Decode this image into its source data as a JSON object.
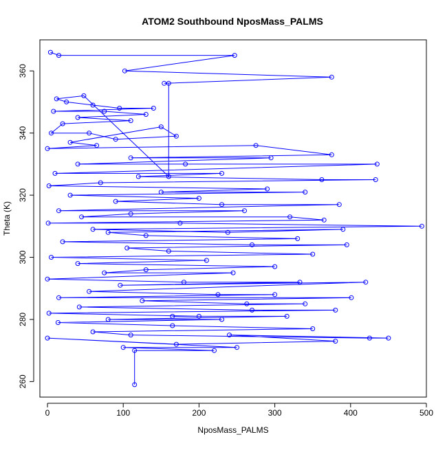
{
  "chart_data": {
    "type": "line",
    "title": "ATOM2 Southbound NposMass_PALMS",
    "xlabel": "NposMass_PALMS",
    "ylabel": "Theta (K)",
    "xlim": [
      -10,
      500
    ],
    "ylim": [
      255,
      370
    ],
    "x_ticks": [
      0,
      100,
      200,
      300,
      400,
      500
    ],
    "y_ticks": [
      260,
      280,
      300,
      320,
      340,
      360
    ],
    "grid": false,
    "legend": "none",
    "series_color": "#0000ff",
    "markers": "open-circle",
    "series": [
      {
        "points": [
          [
            4,
            366
          ],
          [
            15,
            365
          ],
          [
            247,
            365
          ],
          [
            102,
            360
          ],
          [
            375,
            358
          ],
          [
            154,
            356
          ],
          [
            160,
            356
          ],
          [
            160,
            326
          ],
          [
            48,
            352
          ],
          [
            12,
            351
          ],
          [
            25,
            350
          ],
          [
            60,
            349
          ],
          [
            95,
            348
          ],
          [
            140,
            348
          ],
          [
            8,
            347
          ],
          [
            75,
            347
          ],
          [
            130,
            346
          ],
          [
            40,
            345
          ],
          [
            110,
            344
          ],
          [
            20,
            343
          ],
          [
            5,
            340
          ],
          [
            55,
            340
          ],
          [
            90,
            338
          ],
          [
            170,
            339
          ],
          [
            150,
            342
          ],
          [
            30,
            337
          ],
          [
            65,
            336
          ],
          [
            0,
            335
          ],
          [
            275,
            336
          ],
          [
            375,
            333
          ],
          [
            110,
            332
          ],
          [
            295,
            332
          ],
          [
            40,
            330
          ],
          [
            182,
            330
          ],
          [
            435,
            330
          ],
          [
            10,
            327
          ],
          [
            230,
            327
          ],
          [
            120,
            326
          ],
          [
            362,
            325
          ],
          [
            433,
            325
          ],
          [
            70,
            324
          ],
          [
            2,
            323
          ],
          [
            290,
            322
          ],
          [
            150,
            321
          ],
          [
            340,
            321
          ],
          [
            30,
            320
          ],
          [
            200,
            319
          ],
          [
            90,
            318
          ],
          [
            230,
            317
          ],
          [
            385,
            317
          ],
          [
            15,
            315
          ],
          [
            260,
            315
          ],
          [
            110,
            314
          ],
          [
            45,
            313
          ],
          [
            320,
            313
          ],
          [
            365,
            312
          ],
          [
            1,
            311
          ],
          [
            175,
            311
          ],
          [
            494,
            310
          ],
          [
            60,
            309
          ],
          [
            238,
            308
          ],
          [
            390,
            309
          ],
          [
            80,
            308
          ],
          [
            130,
            307
          ],
          [
            330,
            306
          ],
          [
            20,
            305
          ],
          [
            270,
            304
          ],
          [
            395,
            304
          ],
          [
            105,
            303
          ],
          [
            160,
            302
          ],
          [
            350,
            301
          ],
          [
            5,
            300
          ],
          [
            210,
            299
          ],
          [
            40,
            298
          ],
          [
            300,
            297
          ],
          [
            130,
            296
          ],
          [
            75,
            295
          ],
          [
            245,
            295
          ],
          [
            0,
            293
          ],
          [
            180,
            292
          ],
          [
            333,
            292
          ],
          [
            96,
            291
          ],
          [
            420,
            292
          ],
          [
            55,
            289
          ],
          [
            225,
            288
          ],
          [
            300,
            288
          ],
          [
            15,
            287
          ],
          [
            401,
            287
          ],
          [
            125,
            286
          ],
          [
            263,
            285
          ],
          [
            340,
            285
          ],
          [
            42,
            284
          ],
          [
            270,
            283
          ],
          [
            380,
            283
          ],
          [
            2,
            282
          ],
          [
            200,
            281
          ],
          [
            165,
            281
          ],
          [
            316,
            281
          ],
          [
            80,
            280
          ],
          [
            230,
            280
          ],
          [
            14,
            279
          ],
          [
            165,
            278
          ],
          [
            350,
            277
          ],
          [
            60,
            276
          ],
          [
            110,
            275
          ],
          [
            425,
            274
          ],
          [
            450,
            274
          ],
          [
            240,
            275
          ],
          [
            380,
            273
          ],
          [
            170,
            272
          ],
          [
            0,
            274
          ],
          [
            250,
            271
          ],
          [
            100,
            271
          ],
          [
            220,
            270
          ],
          [
            115,
            270
          ],
          [
            115,
            259
          ]
        ]
      }
    ]
  }
}
